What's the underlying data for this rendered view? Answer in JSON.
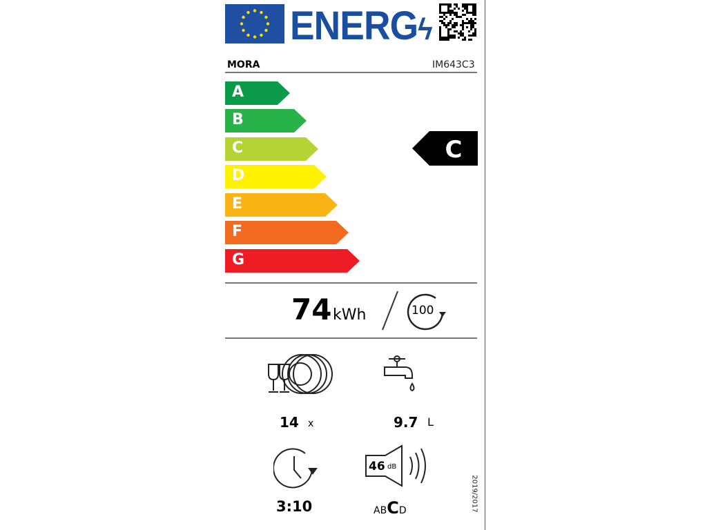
{
  "header": {
    "logo_text": "ENERG",
    "brand": "MORA",
    "model": "IM643C3",
    "flag": "eu-flag-icon",
    "qr": "qr-code"
  },
  "scale": {
    "classes": [
      {
        "letter": "A",
        "color": "#0a9a4a"
      },
      {
        "letter": "B",
        "color": "#27b24a"
      },
      {
        "letter": "C",
        "color": "#b5d334"
      },
      {
        "letter": "D",
        "color": "#fff200"
      },
      {
        "letter": "E",
        "color": "#fbb415"
      },
      {
        "letter": "F",
        "color": "#f36a21"
      },
      {
        "letter": "G",
        "color": "#ee1c25"
      }
    ],
    "rating": "C"
  },
  "energy": {
    "value": "74",
    "unit": "kWh",
    "cycles": "100"
  },
  "capacity": {
    "value": "14",
    "unit": "x"
  },
  "water": {
    "value": "9.7",
    "unit": "L"
  },
  "duration": {
    "value": "3:10"
  },
  "noise": {
    "value": "46",
    "unit": "dB",
    "classes_before": "AB",
    "class": "C",
    "classes_after": "D"
  },
  "regulation": "2019/2017"
}
